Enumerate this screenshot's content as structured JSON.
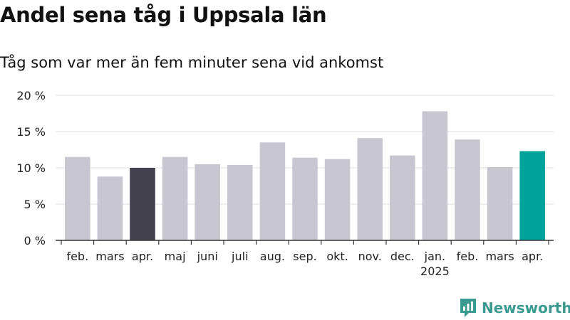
{
  "title": "Andel sena tåg i Uppsala län",
  "subtitle": "Tåg som var mer än fem minuter sena vid ankomst",
  "brand": {
    "name": "Newsworthy",
    "icon": "newsworthy-logo-icon"
  },
  "colors": {
    "bar_default": "#c8c7d1",
    "bar_highlight_dark": "#43414e",
    "bar_highlight_teal": "#00a39b",
    "grid": "#dddddd",
    "axis": "#333333",
    "brand": "#3a9a8f"
  },
  "chart_data": {
    "type": "bar",
    "categories": [
      "feb.",
      "mars",
      "apr.",
      "maj",
      "juni",
      "juli",
      "aug.",
      "sep.",
      "okt.",
      "nov.",
      "dec.",
      "jan.",
      "feb.",
      "mars",
      "apr."
    ],
    "year_labels": [
      {
        "category_index": 11,
        "label": "2025"
      }
    ],
    "series": [
      {
        "values": [
          11.5,
          8.8,
          10.0,
          11.5,
          10.5,
          10.4,
          13.5,
          11.4,
          11.2,
          14.1,
          11.7,
          17.8,
          13.9,
          10.1,
          12.3
        ]
      }
    ],
    "highlight": [
      {
        "index": 2,
        "color": "#43414e"
      },
      {
        "index": 14,
        "color": "#00a39b"
      }
    ],
    "ylim": [
      0,
      20
    ],
    "yticks": [
      0,
      5,
      10,
      15,
      20
    ],
    "ytick_labels": [
      "0 %",
      "5 %",
      "10 %",
      "15 %",
      "20 %"
    ],
    "grid": true,
    "xlabel": "",
    "ylabel": ""
  }
}
